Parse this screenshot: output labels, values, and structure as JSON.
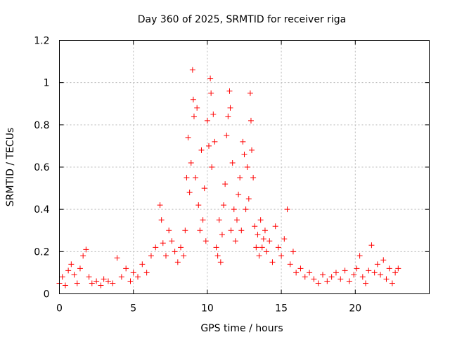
{
  "chart_data": {
    "type": "scatter",
    "title": "Day 360 of 2025, SRMTID for receiver riga",
    "xlabel": "GPS time / hours",
    "ylabel": "SRMTID / TECUs",
    "xlim": [
      0,
      25
    ],
    "ylim": [
      0,
      1.2
    ],
    "xticks": [
      0,
      5,
      10,
      15,
      20
    ],
    "yticks": [
      0,
      0.2,
      0.4,
      0.6,
      0.8,
      1,
      1.2
    ],
    "xtick_labels": [
      "0",
      "5",
      "10",
      "15",
      "20"
    ],
    "ytick_labels": [
      "0",
      "0.2",
      "0.4",
      "0.6",
      "0.8",
      "1",
      "1.2"
    ],
    "grid": true,
    "marker": "+",
    "series_color": "#ff0000",
    "series": [
      {
        "name": "riga",
        "x": [
          0.0,
          0.2,
          0.4,
          0.6,
          0.8,
          1.0,
          1.2,
          1.4,
          1.6,
          1.8,
          2.0,
          2.2,
          2.5,
          2.8,
          3.0,
          3.3,
          3.6,
          3.9,
          4.2,
          4.5,
          4.8,
          5.0,
          5.3,
          5.6,
          5.9,
          6.2,
          6.5,
          6.8,
          6.9,
          7.0,
          7.2,
          7.4,
          7.6,
          7.8,
          8.0,
          8.2,
          8.4,
          8.5,
          8.6,
          8.7,
          8.8,
          8.9,
          9.0,
          9.05,
          9.1,
          9.2,
          9.3,
          9.4,
          9.5,
          9.6,
          9.7,
          9.8,
          9.9,
          10.0,
          10.1,
          10.2,
          10.25,
          10.3,
          10.4,
          10.5,
          10.6,
          10.7,
          10.8,
          10.9,
          11.0,
          11.1,
          11.2,
          11.3,
          11.4,
          11.5,
          11.55,
          11.6,
          11.7,
          11.8,
          11.9,
          12.0,
          12.1,
          12.2,
          12.3,
          12.4,
          12.5,
          12.6,
          12.7,
          12.8,
          12.9,
          12.95,
          13.0,
          13.1,
          13.2,
          13.3,
          13.4,
          13.5,
          13.6,
          13.7,
          13.8,
          13.9,
          14.0,
          14.2,
          14.4,
          14.6,
          14.8,
          15.0,
          15.2,
          15.4,
          15.6,
          15.8,
          16.0,
          16.3,
          16.6,
          16.9,
          17.2,
          17.5,
          17.8,
          18.1,
          18.4,
          18.7,
          19.0,
          19.3,
          19.6,
          19.9,
          20.1,
          20.3,
          20.5,
          20.7,
          20.9,
          21.1,
          21.3,
          21.5,
          21.7,
          21.9,
          22.1,
          22.3,
          22.5,
          22.7,
          22.9
        ],
        "values": [
          0.05,
          0.08,
          0.04,
          0.11,
          0.14,
          0.09,
          0.05,
          0.12,
          0.18,
          0.21,
          0.08,
          0.05,
          0.06,
          0.04,
          0.07,
          0.06,
          0.05,
          0.17,
          0.08,
          0.12,
          0.06,
          0.1,
          0.08,
          0.14,
          0.1,
          0.18,
          0.22,
          0.42,
          0.35,
          0.24,
          0.18,
          0.3,
          0.25,
          0.2,
          0.15,
          0.22,
          0.18,
          0.3,
          0.55,
          0.74,
          0.48,
          0.62,
          1.06,
          0.92,
          0.84,
          0.55,
          0.88,
          0.42,
          0.3,
          0.68,
          0.35,
          0.5,
          0.25,
          0.82,
          0.7,
          1.02,
          0.95,
          0.6,
          0.85,
          0.72,
          0.22,
          0.18,
          0.35,
          0.15,
          0.28,
          0.42,
          0.52,
          0.75,
          0.84,
          0.96,
          0.88,
          0.3,
          0.62,
          0.4,
          0.25,
          0.35,
          0.47,
          0.55,
          0.3,
          0.72,
          0.66,
          0.4,
          0.6,
          0.45,
          0.95,
          0.82,
          0.68,
          0.55,
          0.32,
          0.22,
          0.28,
          0.18,
          0.35,
          0.22,
          0.26,
          0.3,
          0.2,
          0.25,
          0.15,
          0.32,
          0.22,
          0.18,
          0.26,
          0.4,
          0.14,
          0.2,
          0.1,
          0.12,
          0.08,
          0.1,
          0.07,
          0.05,
          0.09,
          0.06,
          0.08,
          0.1,
          0.07,
          0.11,
          0.06,
          0.09,
          0.12,
          0.18,
          0.08,
          0.05,
          0.11,
          0.23,
          0.1,
          0.14,
          0.09,
          0.16,
          0.07,
          0.12,
          0.05,
          0.1,
          0.12
        ]
      }
    ]
  }
}
